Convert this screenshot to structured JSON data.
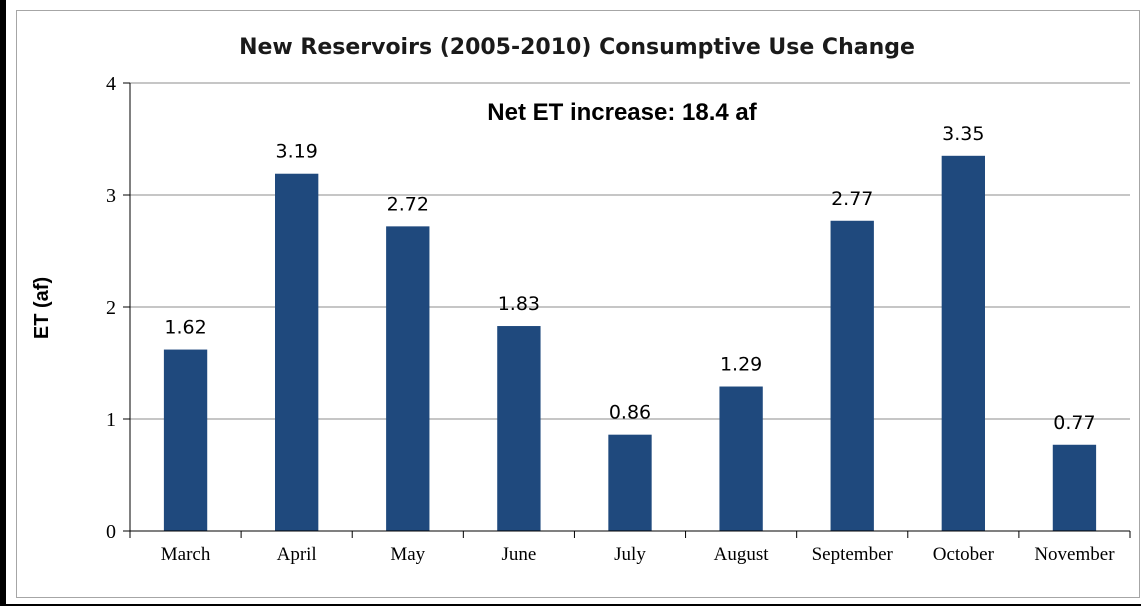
{
  "chart_data": {
    "type": "bar",
    "title": "New Reservoirs (2005-2010) Consumptive Use Change",
    "annotation": "Net ET increase: 18.4 af",
    "xlabel": "",
    "ylabel": "ET (af)",
    "ylim": [
      0,
      4
    ],
    "yticks": [
      "0",
      "1",
      "2",
      "3",
      "4"
    ],
    "grid": true,
    "legend": "none",
    "bar_color": "#1f497d",
    "categories": [
      "March",
      "April",
      "May",
      "June",
      "July",
      "August",
      "September",
      "October",
      "November"
    ],
    "values": [
      1.62,
      3.19,
      2.72,
      1.83,
      0.86,
      1.29,
      2.77,
      3.35,
      0.77
    ],
    "data_labels": [
      "1.62",
      "3.19",
      "2.72",
      "1.83",
      "0.86",
      "1.29",
      "2.77",
      "3.35",
      "0.77"
    ]
  }
}
